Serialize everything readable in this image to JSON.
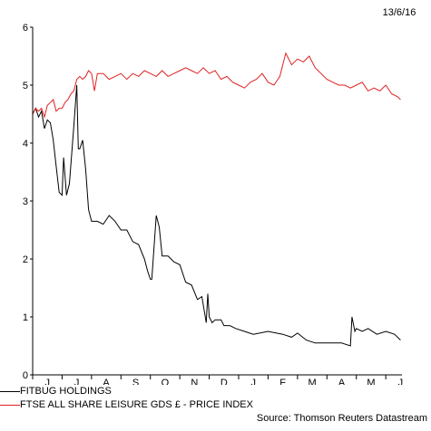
{
  "date_label": "13/6/16",
  "source": "Source: Thomson Reuters Datastream",
  "chart_data": {
    "type": "line",
    "title": "",
    "xlabel": "",
    "ylabel": "",
    "ylim": [
      0,
      6
    ],
    "yticks": [
      0,
      1,
      2,
      3,
      4,
      5,
      6
    ],
    "x_tick_labels": [
      "J",
      "J",
      "A",
      "S",
      "O",
      "N",
      "D",
      "J",
      "F",
      "M",
      "A",
      "M",
      "J"
    ],
    "x_range": [
      0,
      12.55
    ],
    "grid": false,
    "legend_position": "bottom-left",
    "series": [
      {
        "name": "FITBUG HOLDINGS",
        "color": "#000000",
        "points": [
          [
            0,
            4.5
          ],
          [
            0.1,
            4.6
          ],
          [
            0.2,
            4.45
          ],
          [
            0.3,
            4.55
          ],
          [
            0.4,
            4.25
          ],
          [
            0.5,
            4.4
          ],
          [
            0.6,
            4.35
          ],
          [
            0.7,
            4.05
          ],
          [
            0.8,
            3.6
          ],
          [
            0.9,
            3.15
          ],
          [
            1.0,
            3.1
          ],
          [
            1.05,
            3.75
          ],
          [
            1.15,
            3.1
          ],
          [
            1.25,
            3.3
          ],
          [
            1.4,
            4.3
          ],
          [
            1.5,
            5.0
          ],
          [
            1.55,
            3.9
          ],
          [
            1.6,
            3.9
          ],
          [
            1.7,
            4.05
          ],
          [
            1.8,
            3.55
          ],
          [
            1.9,
            2.85
          ],
          [
            2.0,
            2.65
          ],
          [
            2.2,
            2.65
          ],
          [
            2.4,
            2.6
          ],
          [
            2.6,
            2.75
          ],
          [
            2.8,
            2.65
          ],
          [
            3.0,
            2.5
          ],
          [
            3.2,
            2.5
          ],
          [
            3.4,
            2.3
          ],
          [
            3.6,
            2.25
          ],
          [
            3.8,
            2.0
          ],
          [
            3.9,
            1.8
          ],
          [
            4.0,
            1.65
          ],
          [
            4.05,
            1.65
          ],
          [
            4.2,
            2.75
          ],
          [
            4.3,
            2.55
          ],
          [
            4.4,
            2.05
          ],
          [
            4.6,
            2.05
          ],
          [
            4.8,
            1.95
          ],
          [
            5.0,
            1.9
          ],
          [
            5.2,
            1.6
          ],
          [
            5.4,
            1.55
          ],
          [
            5.6,
            1.3
          ],
          [
            5.75,
            1.35
          ],
          [
            5.85,
            1.05
          ],
          [
            5.9,
            0.9
          ],
          [
            5.95,
            1.4
          ],
          [
            6.0,
            1.0
          ],
          [
            6.1,
            0.9
          ],
          [
            6.2,
            0.95
          ],
          [
            6.4,
            0.95
          ],
          [
            6.5,
            0.85
          ],
          [
            6.7,
            0.85
          ],
          [
            6.9,
            0.8
          ],
          [
            7.2,
            0.75
          ],
          [
            7.5,
            0.7
          ],
          [
            8.0,
            0.75
          ],
          [
            8.5,
            0.7
          ],
          [
            8.8,
            0.65
          ],
          [
            9.0,
            0.72
          ],
          [
            9.3,
            0.6
          ],
          [
            9.6,
            0.55
          ],
          [
            10.0,
            0.55
          ],
          [
            10.5,
            0.55
          ],
          [
            10.8,
            0.5
          ],
          [
            10.85,
            1.0
          ],
          [
            10.95,
            0.75
          ],
          [
            11.0,
            0.8
          ],
          [
            11.2,
            0.75
          ],
          [
            11.4,
            0.8
          ],
          [
            11.7,
            0.7
          ],
          [
            12.0,
            0.75
          ],
          [
            12.3,
            0.7
          ],
          [
            12.5,
            0.6
          ]
        ]
      },
      {
        "name": "FTSE ALL SHARE LEISURE GDS £ - PRICE INDEX",
        "color": "#e02020",
        "points": [
          [
            0,
            4.5
          ],
          [
            0.1,
            4.6
          ],
          [
            0.2,
            4.55
          ],
          [
            0.3,
            4.6
          ],
          [
            0.4,
            4.45
          ],
          [
            0.5,
            4.65
          ],
          [
            0.6,
            4.7
          ],
          [
            0.7,
            4.75
          ],
          [
            0.8,
            4.55
          ],
          [
            0.9,
            4.6
          ],
          [
            1.0,
            4.6
          ],
          [
            1.1,
            4.7
          ],
          [
            1.2,
            4.75
          ],
          [
            1.3,
            4.85
          ],
          [
            1.4,
            4.9
          ],
          [
            1.5,
            5.1
          ],
          [
            1.6,
            5.15
          ],
          [
            1.7,
            5.1
          ],
          [
            1.8,
            5.15
          ],
          [
            1.9,
            5.25
          ],
          [
            2.0,
            5.2
          ],
          [
            2.1,
            4.9
          ],
          [
            2.2,
            5.2
          ],
          [
            2.4,
            5.2
          ],
          [
            2.6,
            5.1
          ],
          [
            2.8,
            5.15
          ],
          [
            3.0,
            5.2
          ],
          [
            3.2,
            5.1
          ],
          [
            3.4,
            5.2
          ],
          [
            3.6,
            5.15
          ],
          [
            3.8,
            5.25
          ],
          [
            4.0,
            5.2
          ],
          [
            4.2,
            5.15
          ],
          [
            4.4,
            5.25
          ],
          [
            4.6,
            5.15
          ],
          [
            4.8,
            5.2
          ],
          [
            5.0,
            5.25
          ],
          [
            5.2,
            5.3
          ],
          [
            5.4,
            5.25
          ],
          [
            5.6,
            5.2
          ],
          [
            5.8,
            5.3
          ],
          [
            6.0,
            5.2
          ],
          [
            6.2,
            5.25
          ],
          [
            6.4,
            5.1
          ],
          [
            6.6,
            5.15
          ],
          [
            6.8,
            5.05
          ],
          [
            7.0,
            5.0
          ],
          [
            7.2,
            4.95
          ],
          [
            7.4,
            5.05
          ],
          [
            7.6,
            5.1
          ],
          [
            7.8,
            5.2
          ],
          [
            8.0,
            5.05
          ],
          [
            8.2,
            5.0
          ],
          [
            8.4,
            5.15
          ],
          [
            8.6,
            5.55
          ],
          [
            8.8,
            5.35
          ],
          [
            9.0,
            5.45
          ],
          [
            9.2,
            5.4
          ],
          [
            9.4,
            5.5
          ],
          [
            9.6,
            5.3
          ],
          [
            9.8,
            5.2
          ],
          [
            10.0,
            5.1
          ],
          [
            10.2,
            5.05
          ],
          [
            10.4,
            5.0
          ],
          [
            10.6,
            5.0
          ],
          [
            10.8,
            4.95
          ],
          [
            11.0,
            5.0
          ],
          [
            11.2,
            5.05
          ],
          [
            11.4,
            4.9
          ],
          [
            11.6,
            4.95
          ],
          [
            11.8,
            4.9
          ],
          [
            12.0,
            5.0
          ],
          [
            12.2,
            4.85
          ],
          [
            12.4,
            4.8
          ],
          [
            12.5,
            4.75
          ]
        ]
      }
    ]
  }
}
